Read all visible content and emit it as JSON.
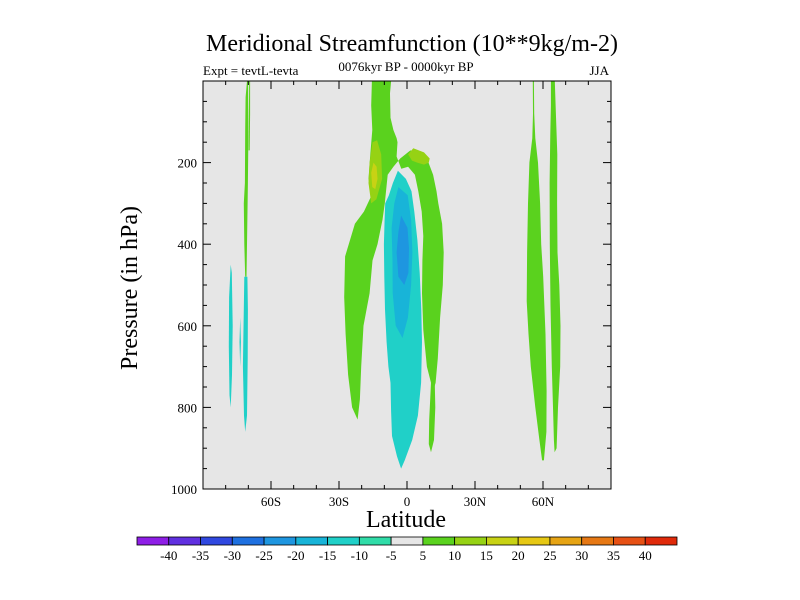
{
  "chart_data": {
    "type": "contour",
    "title": "Meridional Streamfunction (10**9kg/m-2)",
    "subtitle_left": "Expt = tevtL-tevta",
    "subtitle_center": "0076kyr BP - 0000kyr BP",
    "subtitle_right": "JJA",
    "xlabel": "Latitude",
    "ylabel": "Pressure (in hPa)",
    "xlim": [
      -90,
      90
    ],
    "ylim": [
      1000,
      0
    ],
    "x_ticks": [
      {
        "value": -60,
        "label": "60S"
      },
      {
        "value": -30,
        "label": "30S"
      },
      {
        "value": 0,
        "label": "0"
      },
      {
        "value": 30,
        "label": "30N"
      },
      {
        "value": 60,
        "label": "60N"
      }
    ],
    "y_ticks": [
      {
        "value": 200,
        "label": "200"
      },
      {
        "value": 400,
        "label": "400"
      },
      {
        "value": 600,
        "label": "600"
      },
      {
        "value": 800,
        "label": "800"
      },
      {
        "value": 1000,
        "label": "1000"
      }
    ],
    "background_color": "#e6e6e6",
    "colorbar": {
      "labels": [
        "-40",
        "-35",
        "-30",
        "-25",
        "-20",
        "-15",
        "-10",
        "-5",
        "5",
        "10",
        "15",
        "20",
        "25",
        "30",
        "35",
        "40"
      ],
      "colors": [
        "#8e1ee6",
        "#6030e0",
        "#3048e0",
        "#1e70e0",
        "#1e96e0",
        "#18b4d8",
        "#20d0c8",
        "#30dca8",
        "#e6e6e6",
        "#5ad21e",
        "#96d214",
        "#c8d214",
        "#e6c814",
        "#e6a414",
        "#e67814",
        "#e65014",
        "#e02a0a"
      ]
    },
    "regions": [
      {
        "name": "sh-high-lat-green-strip",
        "color": "#5ad21e",
        "outline": [
          [
            -70.6,
            0
          ],
          [
            -71.2,
            40
          ],
          [
            -71.4,
            120
          ],
          [
            -71.5,
            250
          ],
          [
            -72,
            300
          ],
          [
            -71.8,
            400
          ],
          [
            -71.4,
            480
          ],
          [
            -70.8,
            480
          ],
          [
            -70.6,
            400
          ],
          [
            -70.2,
            250
          ],
          [
            -70.0,
            150
          ],
          [
            -70.1,
            0
          ]
        ]
      },
      {
        "name": "sh-high-lat-thin-green",
        "color": "#5ad21e",
        "outline": [
          [
            -69.6,
            0
          ],
          [
            -69.8,
            100
          ],
          [
            -69.9,
            170
          ],
          [
            -69.4,
            170
          ],
          [
            -69.2,
            80
          ],
          [
            -69.2,
            0
          ]
        ]
      },
      {
        "name": "sh-neg-strip-a",
        "color": "#20d0c8",
        "outline": [
          [
            -77.8,
            450
          ],
          [
            -78.5,
            530
          ],
          [
            -78.6,
            650
          ],
          [
            -78.3,
            770
          ],
          [
            -77.8,
            800
          ],
          [
            -77.2,
            720
          ],
          [
            -76.9,
            600
          ],
          [
            -77.3,
            470
          ]
        ]
      },
      {
        "name": "sh-neg-strip-b",
        "color": "#20d0c8",
        "outline": [
          [
            -70.4,
            480
          ],
          [
            -71.8,
            480
          ],
          [
            -72.0,
            560
          ],
          [
            -72.4,
            700
          ],
          [
            -71.9,
            820
          ],
          [
            -71.4,
            860
          ],
          [
            -70.6,
            820
          ],
          [
            -70.3,
            680
          ],
          [
            -70.2,
            560
          ]
        ]
      },
      {
        "name": "sh-neg-thin",
        "color": "#20d0c8",
        "outline": [
          [
            -73.6,
            580
          ],
          [
            -73.9,
            640
          ],
          [
            -73.6,
            700
          ],
          [
            -73.3,
            640
          ]
        ]
      },
      {
        "name": "tropical-positive-cell",
        "color": "#5ad21e",
        "outline": [
          [
            -15.5,
            0
          ],
          [
            -15.8,
            60
          ],
          [
            -15.3,
            120
          ],
          [
            -16.2,
            180
          ],
          [
            -17.0,
            240
          ],
          [
            -15.6,
            280
          ],
          [
            -19,
            320
          ],
          [
            -23,
            350
          ],
          [
            -27.3,
            430
          ],
          [
            -27.7,
            530
          ],
          [
            -27.1,
            620
          ],
          [
            -26.0,
            720
          ],
          [
            -24.2,
            800
          ],
          [
            -21.8,
            830
          ],
          [
            -20.8,
            780
          ],
          [
            -20.2,
            700
          ],
          [
            -19.2,
            600
          ],
          [
            -16.5,
            520
          ],
          [
            -15.2,
            440
          ],
          [
            -13.0,
            400
          ],
          [
            -10.8,
            340
          ],
          [
            -9.8,
            300
          ],
          [
            -8.5,
            230
          ],
          [
            -6,
            210
          ],
          [
            -3,
            190
          ],
          [
            1.5,
            170
          ],
          [
            5.6,
            180
          ],
          [
            9.5,
            200
          ],
          [
            11.5,
            230
          ],
          [
            13,
            270
          ],
          [
            13.8,
            300
          ],
          [
            15.5,
            350
          ],
          [
            16.2,
            420
          ],
          [
            15.8,
            500
          ],
          [
            14.6,
            580
          ],
          [
            13.6,
            680
          ],
          [
            12.6,
            740
          ],
          [
            11.5,
            760
          ],
          [
            8.8,
            700
          ],
          [
            7.2,
            610
          ],
          [
            6.6,
            520
          ],
          [
            6.8,
            440
          ],
          [
            7.2,
            380
          ],
          [
            6.5,
            320
          ],
          [
            5.0,
            270
          ],
          [
            3.5,
            230
          ],
          [
            0.5,
            210
          ],
          [
            -2.5,
            215
          ],
          [
            -4.6,
            185
          ],
          [
            -4.2,
            150
          ],
          [
            -4.6,
            140
          ],
          [
            -6.0,
            120
          ],
          [
            -7.3,
            90
          ],
          [
            -7.5,
            30
          ],
          [
            -7.0,
            0
          ]
        ]
      },
      {
        "name": "tropical-positive-lower-spur",
        "color": "#5ad21e",
        "outline": [
          [
            11.8,
            670
          ],
          [
            12.2,
            730
          ],
          [
            12.5,
            800
          ],
          [
            11.9,
            880
          ],
          [
            10.6,
            910
          ],
          [
            9.6,
            890
          ],
          [
            9.8,
            830
          ],
          [
            10.4,
            760
          ],
          [
            10.9,
            700
          ]
        ]
      },
      {
        "name": "upper-positive-core-a",
        "color": "#96d214",
        "outline": [
          [
            -15.2,
            150
          ],
          [
            -16.5,
            200
          ],
          [
            -17.0,
            250
          ],
          [
            -15.8,
            300
          ],
          [
            -13.5,
            290
          ],
          [
            -11.0,
            240
          ],
          [
            -11.4,
            180
          ],
          [
            -13.2,
            145
          ]
        ]
      },
      {
        "name": "upper-positive-core-b",
        "color": "#96d214",
        "outline": [
          [
            0.5,
            180
          ],
          [
            2.8,
            165
          ],
          [
            7.5,
            175
          ],
          [
            10,
            190
          ],
          [
            9.6,
            200
          ],
          [
            7.5,
            205
          ],
          [
            4.5,
            200
          ],
          [
            2.2,
            195
          ]
        ]
      },
      {
        "name": "upper-positive-core-a-inner",
        "color": "#c8d214",
        "outline": [
          [
            -14.8,
            200
          ],
          [
            -15.8,
            225
          ],
          [
            -15.3,
            260
          ],
          [
            -14.0,
            265
          ],
          [
            -13.0,
            240
          ],
          [
            -13.4,
            210
          ]
        ]
      },
      {
        "name": "tropical-negative-cell",
        "color": "#20d0c8",
        "outline": [
          [
            -4.0,
            220
          ],
          [
            -6.2,
            250
          ],
          [
            -8.0,
            280
          ],
          [
            -9.6,
            300
          ],
          [
            -9.9,
            340
          ],
          [
            -10.2,
            400
          ],
          [
            -10.0,
            480
          ],
          [
            -9.7,
            560
          ],
          [
            -9.0,
            640
          ],
          [
            -8.2,
            700
          ],
          [
            -7.3,
            740
          ],
          [
            -7.0,
            810
          ],
          [
            -6.6,
            870
          ],
          [
            -4.4,
            920
          ],
          [
            -2.6,
            950
          ],
          [
            -1.0,
            930
          ],
          [
            2.3,
            880
          ],
          [
            4.8,
            820
          ],
          [
            6.2,
            740
          ],
          [
            6.6,
            640
          ],
          [
            6.3,
            560
          ],
          [
            5.6,
            470
          ],
          [
            4.6,
            390
          ],
          [
            3.2,
            320
          ],
          [
            2.0,
            270
          ],
          [
            -0.5,
            240
          ]
        ]
      },
      {
        "name": "tropical-negative-cell-mid",
        "color": "#18b4d8",
        "outline": [
          [
            -3.8,
            260
          ],
          [
            -5.6,
            300
          ],
          [
            -6.8,
            360
          ],
          [
            -6.4,
            440
          ],
          [
            -6.3,
            520
          ],
          [
            -5.0,
            600
          ],
          [
            -2.0,
            630
          ],
          [
            0.4,
            580
          ],
          [
            1.8,
            500
          ],
          [
            2.4,
            420
          ],
          [
            1.8,
            340
          ],
          [
            0.3,
            280
          ]
        ]
      },
      {
        "name": "tropical-negative-cell-core",
        "color": "#1e96e0",
        "outline": [
          [
            -2.6,
            330
          ],
          [
            -3.8,
            370
          ],
          [
            -4.6,
            420
          ],
          [
            -3.8,
            480
          ],
          [
            -1.2,
            500
          ],
          [
            0.6,
            470
          ],
          [
            0.9,
            410
          ],
          [
            0.2,
            360
          ]
        ]
      },
      {
        "name": "nh-positive-strip-a",
        "color": "#5ad21e",
        "outline": [
          [
            55.5,
            0
          ],
          [
            55.6,
            80
          ],
          [
            55.3,
            140
          ],
          [
            54.0,
            200
          ],
          [
            53.4,
            300
          ],
          [
            53.0,
            420
          ],
          [
            52.8,
            540
          ],
          [
            53.6,
            620
          ],
          [
            54.6,
            700
          ],
          [
            56.6,
            800
          ],
          [
            58.4,
            880
          ],
          [
            59.6,
            930
          ],
          [
            60.4,
            930
          ],
          [
            61.5,
            860
          ],
          [
            61.6,
            760
          ],
          [
            61.1,
            620
          ],
          [
            60.1,
            480
          ],
          [
            59.2,
            400
          ],
          [
            58.7,
            300
          ],
          [
            57.8,
            200
          ],
          [
            56.6,
            140
          ],
          [
            56.1,
            80
          ],
          [
            56.0,
            0
          ]
        ]
      },
      {
        "name": "nh-positive-strip-b",
        "color": "#5ad21e",
        "outline": [
          [
            63.5,
            0
          ],
          [
            63.5,
            60
          ],
          [
            63.2,
            130
          ],
          [
            62.9,
            250
          ],
          [
            63.0,
            400
          ],
          [
            63.3,
            550
          ],
          [
            63.9,
            700
          ],
          [
            64.4,
            800
          ],
          [
            64.8,
            880
          ],
          [
            65.1,
            910
          ],
          [
            66.0,
            900
          ],
          [
            66.6,
            800
          ],
          [
            67.6,
            700
          ],
          [
            67.7,
            600
          ],
          [
            67.2,
            500
          ],
          [
            66.4,
            420
          ],
          [
            66.2,
            300
          ],
          [
            66.3,
            180
          ],
          [
            65.7,
            80
          ],
          [
            65.2,
            0
          ]
        ]
      }
    ]
  }
}
